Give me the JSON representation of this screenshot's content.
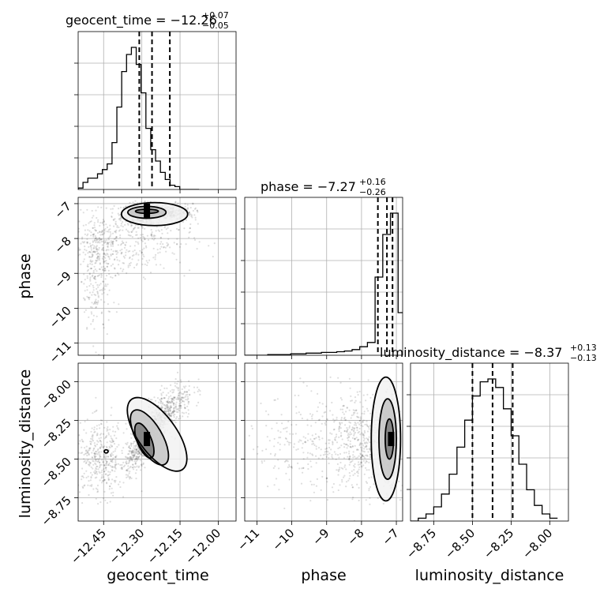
{
  "chart_data": {
    "type": "corner",
    "parameters": [
      "geocent_time",
      "phase",
      "luminosity_distance"
    ],
    "titles": [
      {
        "param": "geocent_time",
        "text": "geocent_time = −12.26",
        "plus": "+0.07",
        "minus": "−0.05",
        "median": -12.26,
        "q_low": -12.31,
        "q_high": -12.19
      },
      {
        "param": "phase",
        "text": "phase = −7.27",
        "plus": "+0.16",
        "minus": "−0.26",
        "median": -7.27,
        "q_low": -7.53,
        "q_high": -7.11
      },
      {
        "param": "luminosity_distance",
        "text": "luminosity_distance = −8.37",
        "plus": "+0.13",
        "minus": "−0.13",
        "median": -8.37,
        "q_low": -8.5,
        "q_high": -8.24
      }
    ],
    "axis_labels": {
      "geocent_time": "geocent_time",
      "phase": "phase",
      "luminosity_distance": "luminosity_distance"
    },
    "ranges": {
      "geocent_time": [
        -12.55,
        -11.93
      ],
      "phase": [
        -11.35,
        -6.82
      ],
      "luminosity_distance": [
        -8.9,
        -7.88
      ]
    },
    "ticks": {
      "geocent_time": [
        "−12.45",
        "−12.30",
        "−12.15",
        "−12.00"
      ],
      "geocent_time_values": [
        -12.45,
        -12.3,
        -12.15,
        -12.0
      ],
      "phase": [
        "−11",
        "−10",
        "−9",
        "−8",
        "−7"
      ],
      "phase_values": [
        -11,
        -10,
        -9,
        -8,
        -7
      ],
      "luminosity_distance": [
        "−8.75",
        "−8.50",
        "−8.25",
        "−8.00"
      ],
      "luminosity_distance_values": [
        -8.75,
        -8.5,
        -8.25,
        -8.0
      ]
    },
    "histograms": {
      "geocent_time": {
        "edges": [
          -12.55,
          -12.531,
          -12.512,
          -12.493,
          -12.474,
          -12.455,
          -12.436,
          -12.417,
          -12.398,
          -12.379,
          -12.36,
          -12.341,
          -12.322,
          -12.303,
          -12.284,
          -12.265,
          -12.246,
          -12.227,
          -12.208,
          -12.189,
          -12.17,
          -12.151,
          -12.132,
          -12.113,
          -12.094,
          -12.075
        ],
        "counts": [
          0.01,
          0.05,
          0.08,
          0.08,
          0.11,
          0.14,
          0.18,
          0.33,
          0.58,
          0.83,
          0.95,
          1.0,
          0.88,
          0.68,
          0.43,
          0.28,
          0.2,
          0.12,
          0.07,
          0.03,
          0.02,
          0.0,
          0.0,
          0.0,
          0.0
        ]
      },
      "phase": {
        "edges": [
          -11.35,
          -11.13,
          -10.91,
          -10.69,
          -10.47,
          -10.25,
          -10.03,
          -9.81,
          -9.59,
          -9.37,
          -9.15,
          -8.93,
          -8.71,
          -8.49,
          -8.27,
          -8.05,
          -7.83,
          -7.61,
          -7.39,
          -7.17,
          -6.95,
          -6.82
        ],
        "counts": [
          0.0,
          0.0,
          0.0,
          0.005,
          0.005,
          0.005,
          0.01,
          0.01,
          0.015,
          0.015,
          0.02,
          0.02,
          0.025,
          0.03,
          0.04,
          0.06,
          0.09,
          0.55,
          0.85,
          1.0,
          0.3
        ]
      },
      "luminosity_distance": {
        "edges": [
          -8.9,
          -8.85,
          -8.8,
          -8.75,
          -8.7,
          -8.65,
          -8.6,
          -8.55,
          -8.5,
          -8.45,
          -8.4,
          -8.35,
          -8.3,
          -8.25,
          -8.2,
          -8.15,
          -8.1,
          -8.05,
          -8.0,
          -7.95
        ],
        "counts": [
          0.0,
          0.02,
          0.05,
          0.1,
          0.19,
          0.33,
          0.52,
          0.71,
          0.88,
          0.98,
          1.0,
          0.94,
          0.79,
          0.6,
          0.4,
          0.22,
          0.11,
          0.05,
          0.02
        ]
      }
    },
    "densities": [
      {
        "x": "geocent_time",
        "y": "phase",
        "cloud": [
          {
            "mx": -12.3,
            "my": -7.3,
            "sx": 0.04,
            "sy": 0.15,
            "w": 0.35
          },
          {
            "mx": -12.2,
            "my": -7.25,
            "sx": 0.05,
            "sy": 0.12,
            "w": 0.2
          },
          {
            "mx": -12.46,
            "my": -8.3,
            "sx": 0.05,
            "sy": 0.5,
            "w": 0.2
          },
          {
            "mx": -12.48,
            "my": -9.6,
            "sx": 0.03,
            "sy": 0.7,
            "w": 0.08
          },
          {
            "mx": -12.3,
            "my": -8.0,
            "sx": 0.1,
            "sy": 0.5,
            "w": 0.17
          }
        ],
        "contours": [
          {
            "cx": -12.28,
            "cy": -7.22,
            "rx": 0.045,
            "ry": 0.06,
            "rot": 0
          },
          {
            "cx": -12.28,
            "cy": -7.25,
            "rx": 0.075,
            "ry": 0.17,
            "rot": 0
          },
          {
            "cx": -12.25,
            "cy": -7.3,
            "rx": 0.13,
            "ry": 0.33,
            "rot": 0
          }
        ],
        "peak": {
          "x": -12.28,
          "y": -7.2
        }
      },
      {
        "x": "geocent_time",
        "y": "luminosity_distance",
        "cloud": [
          {
            "mx": -12.28,
            "my": -8.36,
            "sx": 0.04,
            "sy": 0.1,
            "w": 0.5,
            "rho": 0.8
          },
          {
            "mx": -12.2,
            "my": -8.18,
            "sx": 0.05,
            "sy": 0.09,
            "w": 0.25,
            "rho": 0.6
          },
          {
            "mx": -12.46,
            "my": -8.5,
            "sx": 0.05,
            "sy": 0.12,
            "w": 0.25
          }
        ],
        "contours": [
          {
            "cx": -12.29,
            "cy": -8.38,
            "rx": 0.028,
            "ry": 0.12,
            "rot": -22
          },
          {
            "cx": -12.27,
            "cy": -8.36,
            "rx": 0.05,
            "ry": 0.2,
            "rot": -30
          },
          {
            "cx": -12.24,
            "cy": -8.34,
            "rx": 0.075,
            "ry": 0.28,
            "rot": -36
          }
        ],
        "peak": {
          "x": -12.28,
          "y": -8.37
        },
        "outlier": {
          "x": -12.44,
          "y": -8.45
        }
      },
      {
        "x": "phase",
        "y": "luminosity_distance",
        "cloud": [
          {
            "mx": -7.2,
            "my": -8.37,
            "sx": 0.12,
            "sy": 0.13,
            "w": 0.55
          },
          {
            "mx": -8.0,
            "my": -8.4,
            "sx": 0.6,
            "sy": 0.15,
            "w": 0.3
          },
          {
            "mx": -9.5,
            "my": -8.4,
            "sx": 0.9,
            "sy": 0.15,
            "w": 0.15
          }
        ],
        "contours": [
          {
            "cx": -7.2,
            "cy": -8.37,
            "rx": 0.12,
            "ry": 0.13,
            "rot": 0
          },
          {
            "cx": -7.25,
            "cy": -8.37,
            "rx": 0.25,
            "ry": 0.26,
            "rot": 0
          },
          {
            "cx": -7.3,
            "cy": -8.37,
            "rx": 0.42,
            "ry": 0.4,
            "rot": 0
          }
        ],
        "peak": {
          "x": -7.15,
          "y": -8.37
        }
      }
    ]
  }
}
